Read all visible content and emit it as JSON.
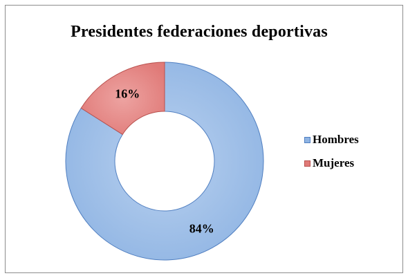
{
  "chart_data": {
    "type": "pie",
    "donut": true,
    "title": "Presidentes federaciones deportivas",
    "slices": [
      {
        "label": "Hombres",
        "value": 84,
        "display": "84%",
        "color": "#8fb4e3",
        "stroke": "#4f7ec0"
      },
      {
        "label": "Mujeres",
        "value": 16,
        "display": "16%",
        "color": "#e07a78",
        "stroke": "#b8504d"
      }
    ],
    "legend_position": "right"
  }
}
